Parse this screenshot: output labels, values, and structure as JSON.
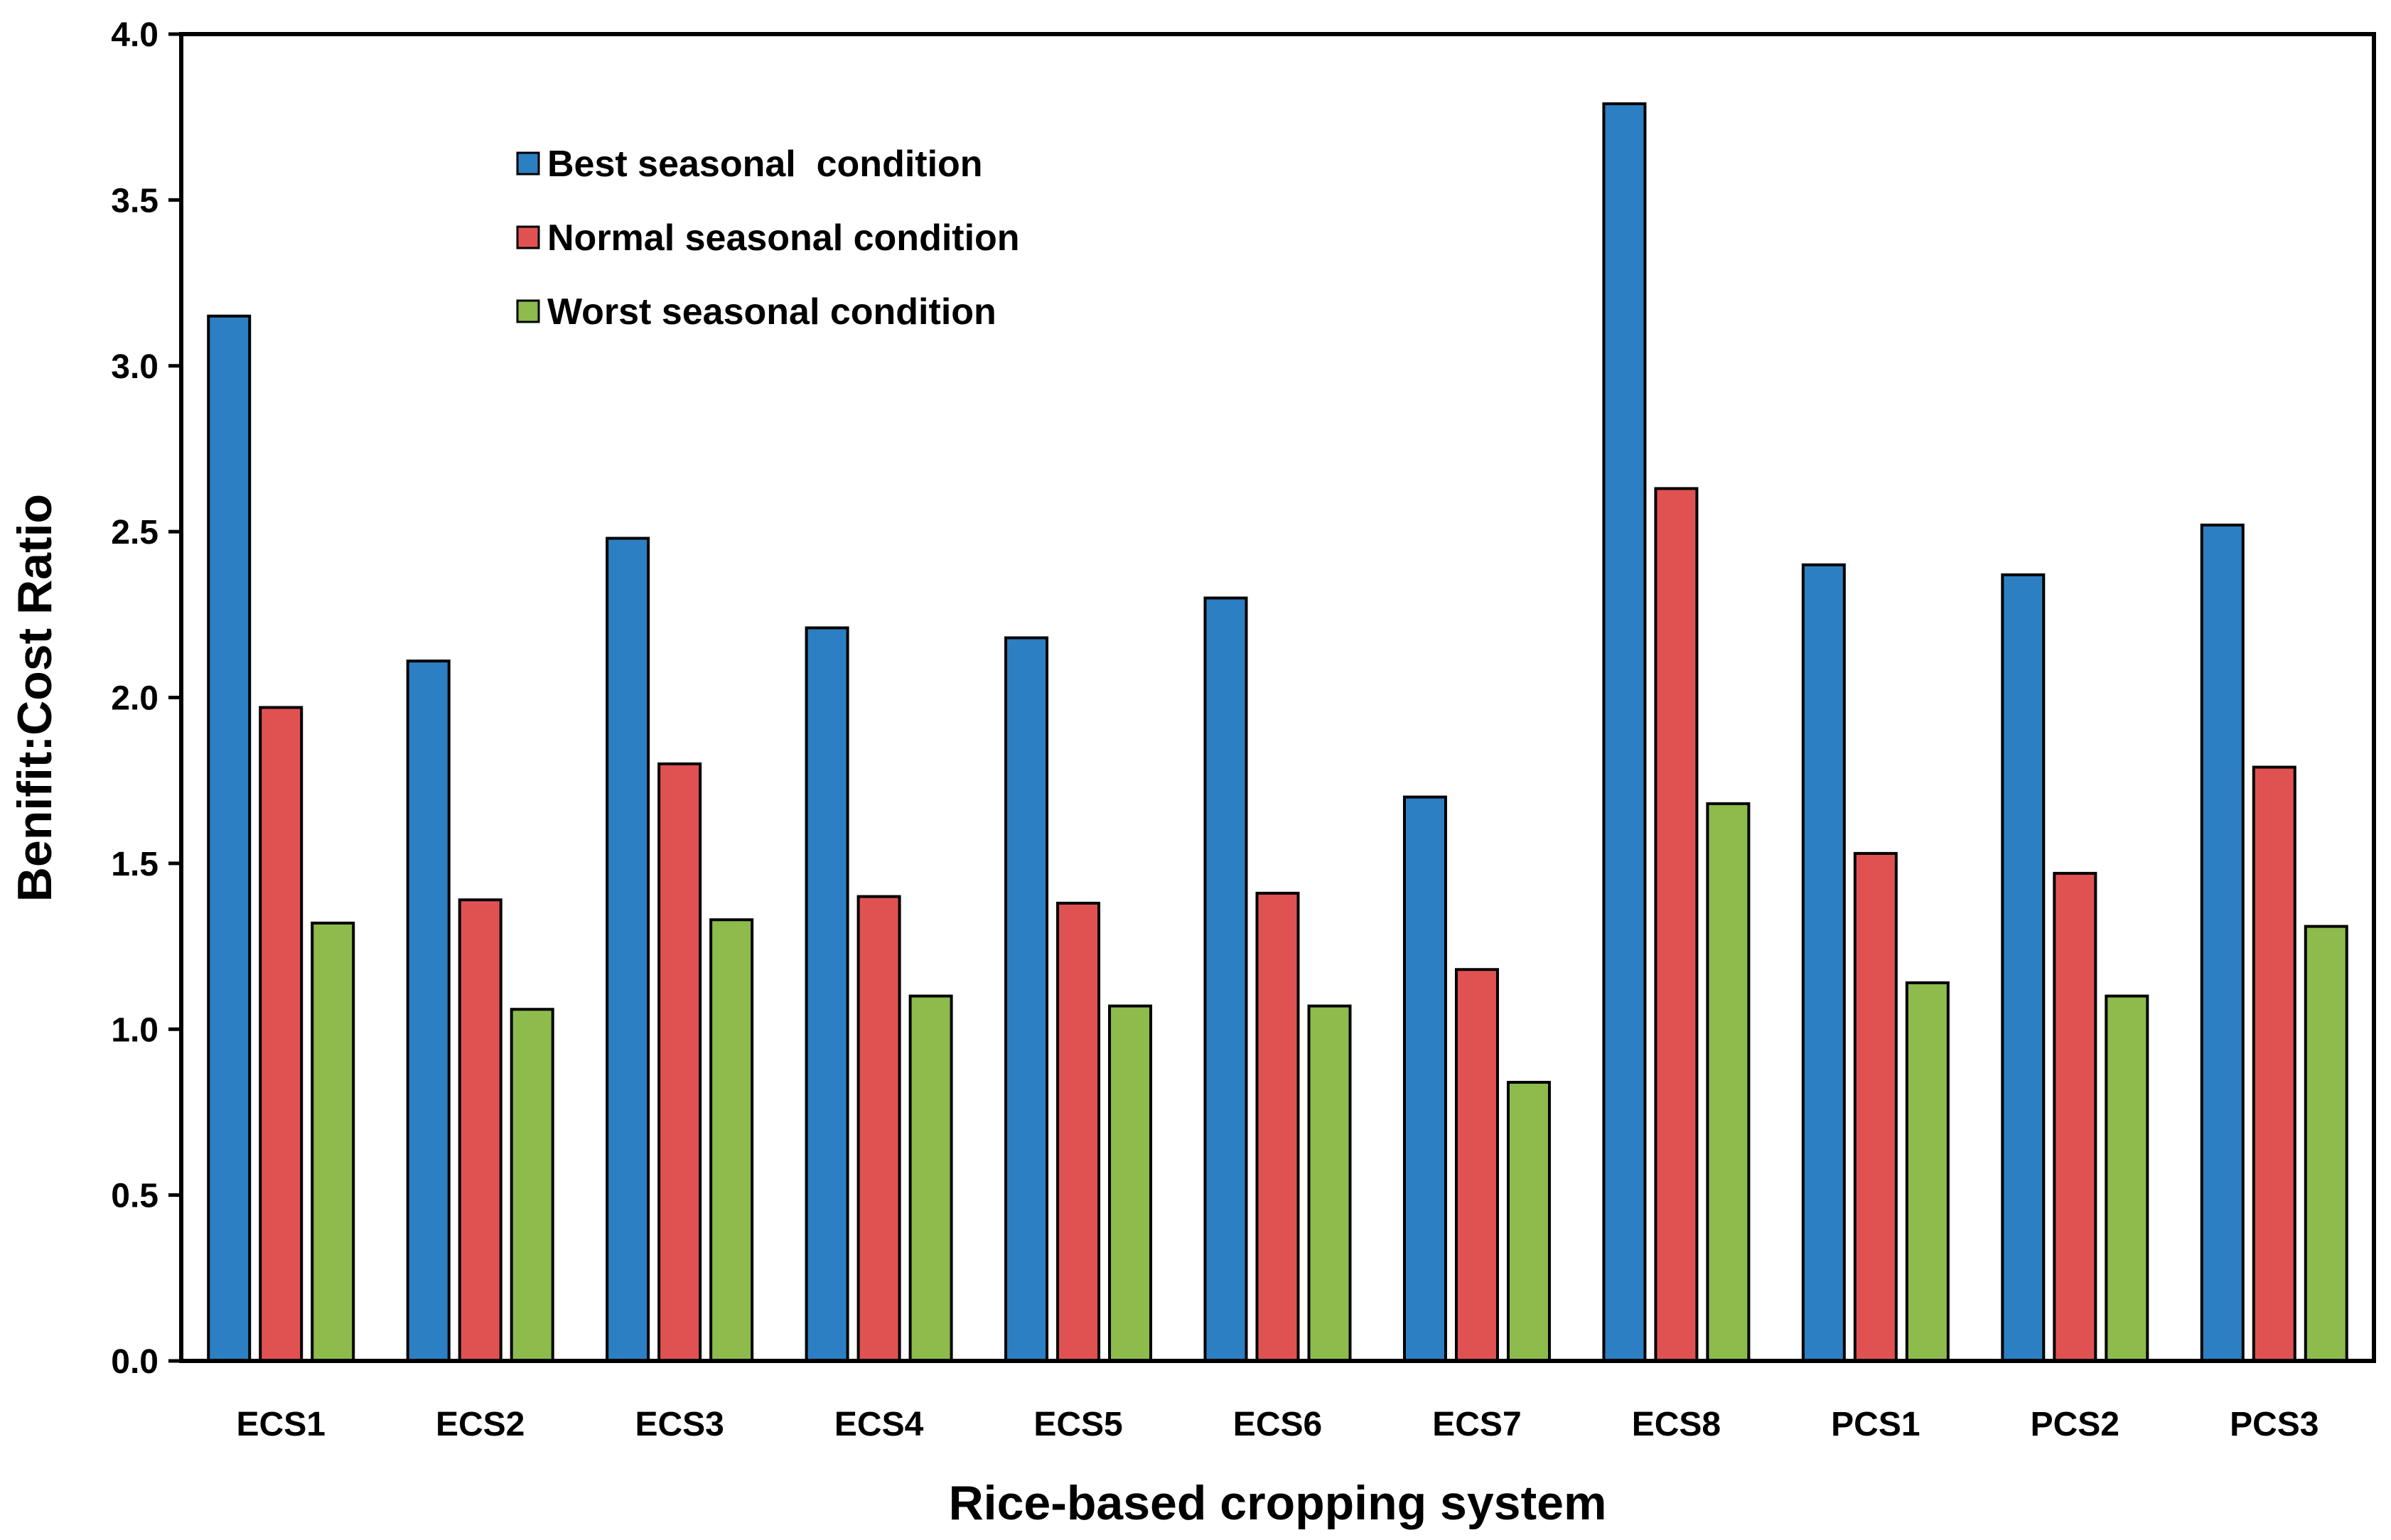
{
  "chart_data": {
    "type": "bar",
    "title": "",
    "xlabel": "Rice-based cropping system",
    "ylabel": "Benifit:Cost Ratio",
    "ylim": [
      0,
      4.0
    ],
    "yticks": [
      "0.0",
      "0.5",
      "1.0",
      "1.5",
      "2.0",
      "2.5",
      "3.0",
      "3.5",
      "4.0"
    ],
    "categories": [
      "ECS1",
      "ECS2",
      "ECS3",
      "ECS4",
      "ECS5",
      "ECS6",
      "ECS7",
      "ECS8",
      "PCS1",
      "PCS2",
      "PCS3"
    ],
    "series": [
      {
        "name": "Best seasonal  condition",
        "color": "#2c7fc2",
        "values": [
          3.15,
          2.11,
          2.48,
          2.21,
          2.18,
          2.3,
          1.7,
          3.79,
          2.4,
          2.37,
          2.52
        ]
      },
      {
        "name": "Normal seasonal condition",
        "color": "#e05252",
        "values": [
          1.97,
          1.39,
          1.8,
          1.4,
          1.38,
          1.41,
          1.18,
          2.63,
          1.53,
          1.47,
          1.79
        ]
      },
      {
        "name": "Worst seasonal condition",
        "color": "#8dbb4c",
        "values": [
          1.32,
          1.06,
          1.33,
          1.1,
          1.07,
          1.07,
          0.84,
          1.68,
          1.14,
          1.1,
          1.31
        ]
      }
    ],
    "legend": "top-left",
    "grid": false
  }
}
